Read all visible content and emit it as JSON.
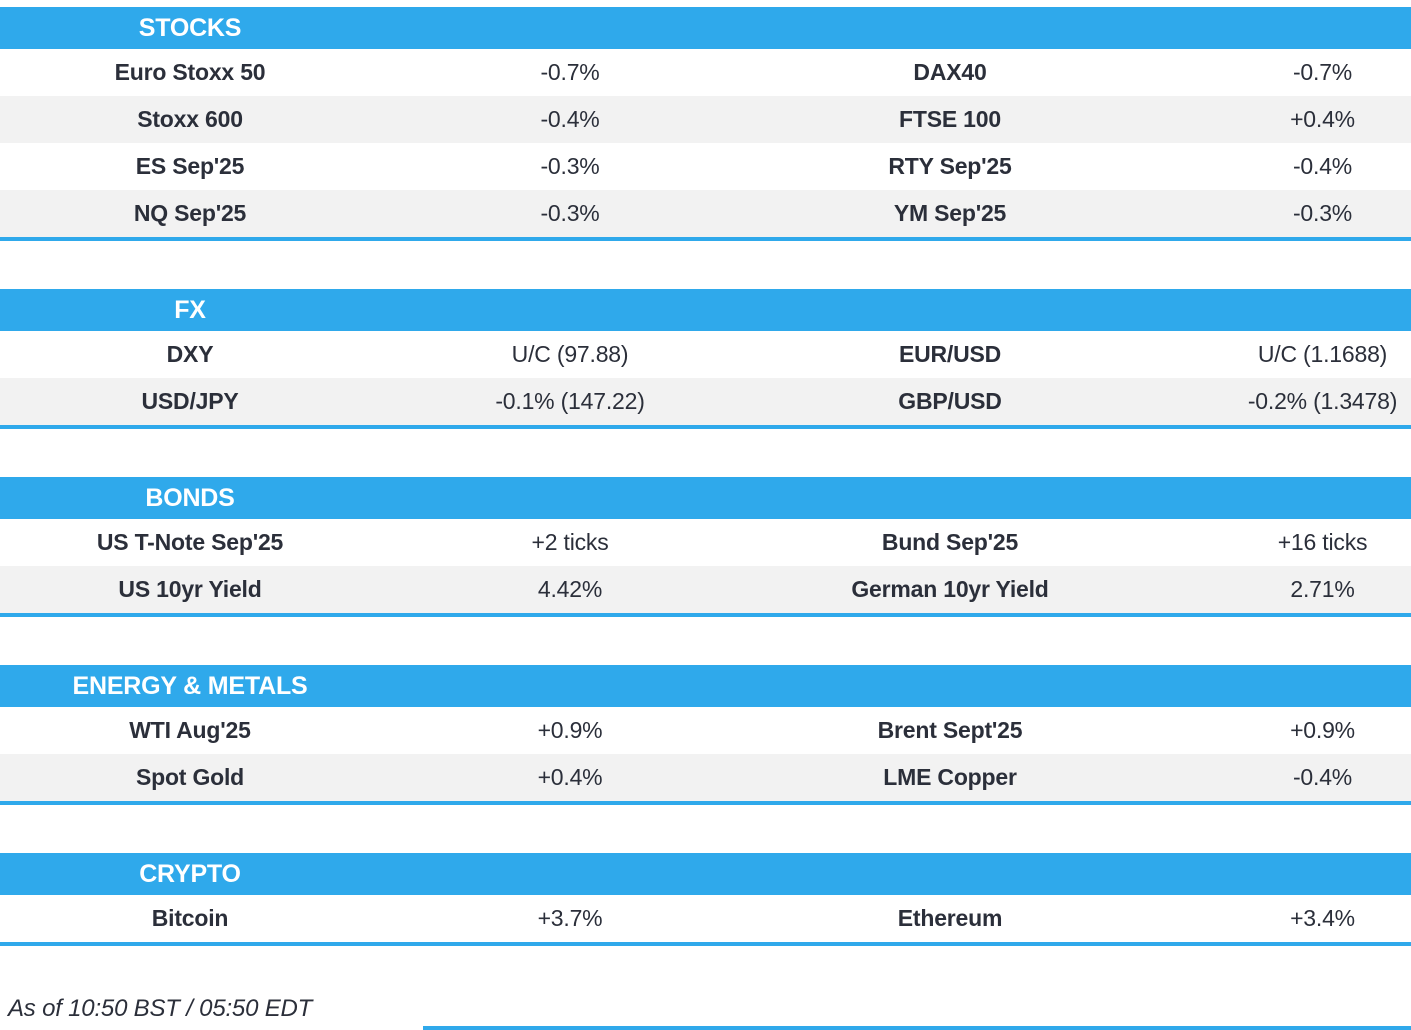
{
  "colors": {
    "accent": "#2FA9EB",
    "row_alt": "#F2F2F2",
    "text": "#2B2F3A",
    "header_text": "#FFFFFF"
  },
  "sections": [
    {
      "title": "STOCKS",
      "rows": [
        {
          "name1": "Euro Stoxx 50",
          "val1": "-0.7%",
          "name2": "DAX40",
          "val2": "-0.7%"
        },
        {
          "name1": "Stoxx 600",
          "val1": "-0.4%",
          "name2": "FTSE 100",
          "val2": "+0.4%"
        },
        {
          "name1": "ES Sep'25",
          "val1": "-0.3%",
          "name2": "RTY Sep'25",
          "val2": "-0.4%"
        },
        {
          "name1": "NQ Sep'25",
          "val1": "-0.3%",
          "name2": "YM Sep'25",
          "val2": "-0.3%"
        }
      ]
    },
    {
      "title": "FX",
      "rows": [
        {
          "name1": "DXY",
          "val1": "U/C (97.88)",
          "name2": "EUR/USD",
          "val2": "U/C (1.1688)"
        },
        {
          "name1": "USD/JPY",
          "val1": "-0.1% (147.22)",
          "name2": "GBP/USD",
          "val2": "-0.2% (1.3478)"
        }
      ]
    },
    {
      "title": "BONDS",
      "rows": [
        {
          "name1": "US T-Note Sep'25",
          "val1": "+2 ticks",
          "name2": "Bund Sep'25",
          "val2": "+16 ticks"
        },
        {
          "name1": "US 10yr Yield",
          "val1": "4.42%",
          "name2": "German 10yr Yield",
          "val2": "2.71%"
        }
      ]
    },
    {
      "title": "ENERGY & METALS",
      "rows": [
        {
          "name1": "WTI Aug'25",
          "val1": "+0.9%",
          "name2": "Brent Sept'25",
          "val2": "+0.9%"
        },
        {
          "name1": "Spot Gold",
          "val1": "+0.4%",
          "name2": "LME Copper",
          "val2": "-0.4%"
        }
      ]
    },
    {
      "title": "CRYPTO",
      "rows": [
        {
          "name1": "Bitcoin",
          "val1": "+3.7%",
          "name2": "Ethereum",
          "val2": "+3.4%"
        }
      ]
    }
  ],
  "footer": {
    "as_of": "As of 10:50 BST / 05:50 EDT"
  }
}
